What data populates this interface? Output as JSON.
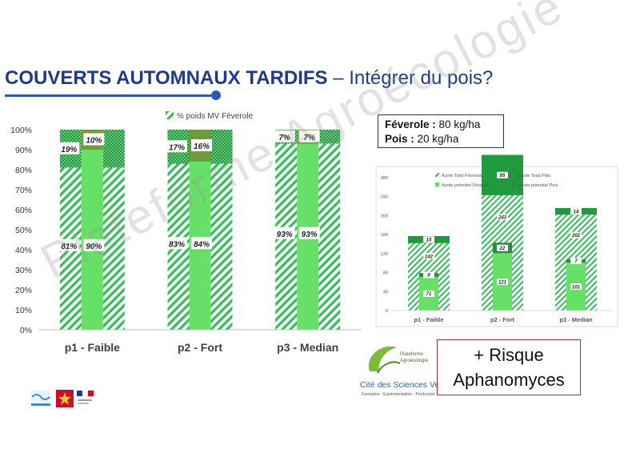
{
  "title": {
    "bold": "COUVERTS AUTOMNAUX TARDIFS",
    "rest": "– Intégrer du pois?"
  },
  "colors": {
    "accent": "#2b57b8",
    "feverole": "#2fbf55",
    "pois": "#66e066",
    "title": "#1f3a8a"
  },
  "chart_data": [
    {
      "type": "bar",
      "legend": [
        "% poids MV Féverole"
      ],
      "categories": [
        "p1 - Faible",
        "p2 - Fort",
        "p3 - Median"
      ],
      "ylim": [
        0,
        100
      ],
      "yticks": [
        "0%",
        "10%",
        "20%",
        "30%",
        "40%",
        "50%",
        "60%",
        "70%",
        "80%",
        "90%",
        "100%"
      ],
      "series": [
        {
          "name": "% poids MV Féverole",
          "values": [
            81,
            83,
            93
          ],
          "labels": [
            "81%",
            "83%",
            "93%"
          ]
        },
        {
          "values": [
            19,
            17,
            7
          ],
          "labels": [
            "19%",
            "17%",
            "7%"
          ]
        },
        {
          "values": [
            90,
            84,
            93
          ],
          "labels": [
            "90%",
            "84%",
            "93%"
          ]
        },
        {
          "values": [
            10,
            16,
            7
          ],
          "labels": [
            "10%",
            "16%",
            "7%"
          ]
        }
      ]
    },
    {
      "type": "bar",
      "legend": [
        "Azote Total Féverole",
        "Azote Total Pois",
        "Azote potentiel Féverole",
        "Azote potentiel Pois"
      ],
      "categories": [
        "p1 - Faible",
        "p2 - Fort",
        "p3 - Median"
      ],
      "ylim": [
        0,
        300
      ],
      "yticks": [
        "0",
        "40",
        "80",
        "120",
        "160",
        "200",
        "240",
        "280"
      ],
      "series": [
        {
          "name": "Azote Total Féverole",
          "values": [
            142,
            243,
            202
          ]
        },
        {
          "name": "Azote Total Pois",
          "values": [
            15,
            85,
            14
          ]
        },
        {
          "name": "Azote potentiel Féverole",
          "values": [
            71,
            121,
            101
          ]
        },
        {
          "name": "Azote potentiel Pois",
          "values": [
            8,
            22,
            7
          ]
        }
      ]
    }
  ],
  "infobox": {
    "feverole_label": "Féverole :",
    "feverole_value": "80 kg/ha",
    "pois_label": "Pois :",
    "pois_value": "20 kg/ha"
  },
  "risk": {
    "line1": "+ Risque",
    "line2": "Aphanomyces"
  },
  "watermark": "Plateforme Agroécologie",
  "logo": {
    "line1": "Plateforme",
    "line2": "Agroécologie",
    "name": "Cité des Sciences Vertes",
    "tagline": "Formation · Expérimentation · Production"
  }
}
